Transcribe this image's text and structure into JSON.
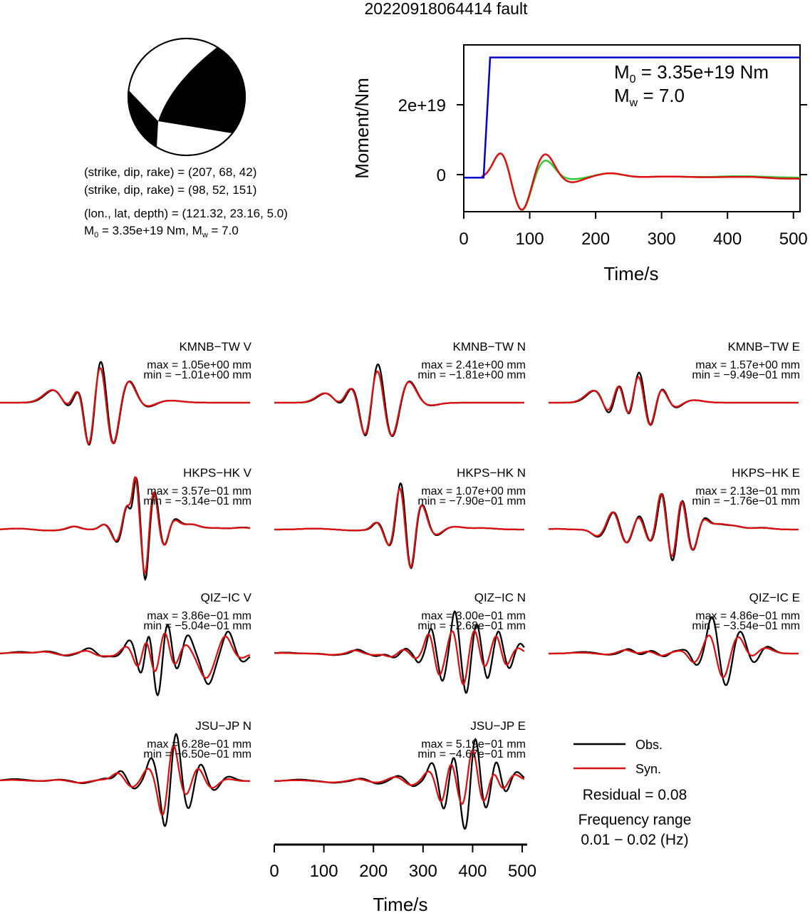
{
  "title": "20220918064414 fault",
  "mechanism": {
    "line1": "(strike, dip, rake) = (207, 68, 42)",
    "line2": "(strike, dip, rake) = (98, 52, 151)",
    "line3": "(lon., lat, depth) = (121.32, 23.16, 5.0)",
    "line4_m0": "M",
    "line4_sub0": "0",
    "line4_rest": " = 3.35e+19 Nm, M",
    "line4_subw": "w",
    "line4_end": " = 7.0"
  },
  "moment_panel": {
    "ylabel": "Moment/Nm",
    "xlabel": "Time/s",
    "m0_prefix": "M",
    "m0_sub": "0",
    "m0_value": " = 3.35e+19 Nm",
    "mw_prefix": "M",
    "mw_sub": "w",
    "mw_value": " = 7.0",
    "yticks": [
      "0",
      "2e+19"
    ],
    "xticks": [
      "0",
      "100",
      "200",
      "300",
      "400",
      "500"
    ]
  },
  "waveform_axis": {
    "xlabel": "Time/s",
    "xticks": [
      "0",
      "100",
      "200",
      "300",
      "400",
      "500"
    ]
  },
  "legend": {
    "obs": "Obs.",
    "syn": "Syn.",
    "residual": "Residual = 0.08",
    "freq_title": "Frequency range",
    "freq_range": "0.01 − 0.02 (Hz)"
  },
  "colors": {
    "obs": "#000000",
    "syn": "#dd1111",
    "moment": "#0000cc",
    "moment_rate_green": "#33cc33",
    "moment_rate_red": "#dd1111"
  },
  "stations": [
    {
      "label": "KMNB−TW V",
      "max": "max = 1.05e+00 mm",
      "min": "min = −1.01e+00 mm"
    },
    {
      "label": "KMNB−TW N",
      "max": "max = 2.41e+00 mm",
      "min": "min = −1.81e+00 mm"
    },
    {
      "label": "KMNB−TW E",
      "max": "max = 1.57e+00 mm",
      "min": "min = −9.49e−01 mm"
    },
    {
      "label": "HKPS−HK V",
      "max": "max = 3.57e−01 mm",
      "min": "min = −3.14e−01 mm"
    },
    {
      "label": "HKPS−HK N",
      "max": "max = 1.07e+00 mm",
      "min": "min = −7.90e−01 mm"
    },
    {
      "label": "HKPS−HK E",
      "max": "max = 2.13e−01 mm",
      "min": "min = −1.76e−01 mm"
    },
    {
      "label": "QIZ−IC V",
      "max": "max = 3.86e−01 mm",
      "min": "min = −5.04e−01 mm"
    },
    {
      "label": "QIZ−IC N",
      "max": "max = 3.00e−01 mm",
      "min": "min = −2.68e−01 mm"
    },
    {
      "label": "QIZ−IC E",
      "max": "max = 4.86e−01 mm",
      "min": "min = −3.54e−01 mm"
    },
    {
      "label": "JSU−JP N",
      "max": "max = 6.28e−01 mm",
      "min": "min = −6.50e−01 mm"
    },
    {
      "label": "JSU−JP E",
      "max": "max = 5.19e−01 mm",
      "min": "min = −4.67e−01 mm"
    }
  ],
  "chart_data": [
    {
      "type": "line",
      "xlabel": "Time/s",
      "ylabel": "Moment/Nm",
      "xlim": [
        0,
        510
      ],
      "ylim": [
        -9.5e+18,
        3.7e+19
      ],
      "series": [
        {
          "x": [
            0,
            30,
            40,
            510
          ],
          "y": [
            0,
            0,
            3.35e+19,
            3.35e+19
          ]
        }
      ]
    },
    {
      "type": "line",
      "xlabel": "Time/s",
      "xlim": [
        0,
        510
      ],
      "series": [
        {
          "name": "Obs."
        },
        {
          "name": "Syn."
        }
      ]
    }
  ]
}
